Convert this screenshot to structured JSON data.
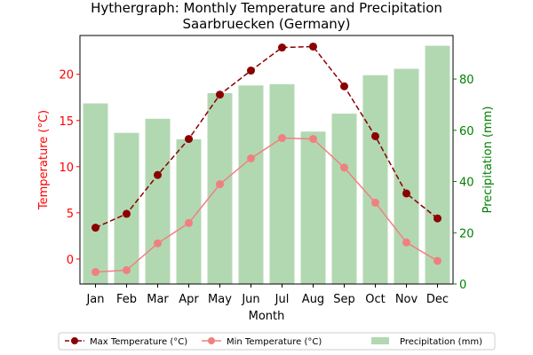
{
  "chart_data": {
    "type": "bar+line",
    "title": "Hythergraph: Monthly Temperature and Precipitation",
    "subtitle": "Saarbruecken (Germany)",
    "xlabel": "Month",
    "ylabel_left": "Temperature (°C)",
    "ylabel_right": "Precipitation (mm)",
    "categories": [
      "Jan",
      "Feb",
      "Mar",
      "Apr",
      "May",
      "Jun",
      "Jul",
      "Aug",
      "Sep",
      "Oct",
      "Nov",
      "Dec"
    ],
    "ylim_left": [
      -2.7,
      24.2
    ],
    "ylim_right": [
      0,
      97
    ],
    "yticks_left": [
      0,
      5,
      10,
      15,
      20
    ],
    "yticks_right": [
      0,
      20,
      40,
      60,
      80
    ],
    "grid": false,
    "legend_position": "bottom-center",
    "series": [
      {
        "name": "Max Temperature (°C)",
        "kind": "line",
        "axis": "left",
        "color": "#8b0000",
        "linestyle": "dashed",
        "values": [
          3.4,
          4.9,
          9.1,
          13.0,
          17.8,
          20.4,
          22.9,
          23.0,
          18.7,
          13.3,
          7.1,
          4.4
        ]
      },
      {
        "name": "Min Temperature (°C)",
        "kind": "line",
        "axis": "left",
        "color": "#f08080",
        "linestyle": "solid",
        "values": [
          -1.4,
          -1.2,
          1.7,
          3.9,
          8.1,
          10.9,
          13.1,
          13.0,
          9.9,
          6.1,
          1.8,
          -0.2
        ]
      },
      {
        "name": "Precipitation (mm)",
        "kind": "bar",
        "axis": "right",
        "color": "#b2d8b2",
        "values": [
          70.5,
          59,
          64.5,
          56.5,
          74.5,
          77.5,
          78,
          59.5,
          66.5,
          81.5,
          84,
          93
        ]
      }
    ],
    "colors": {
      "left_axis": "#ff0000",
      "right_axis": "#008000"
    }
  }
}
